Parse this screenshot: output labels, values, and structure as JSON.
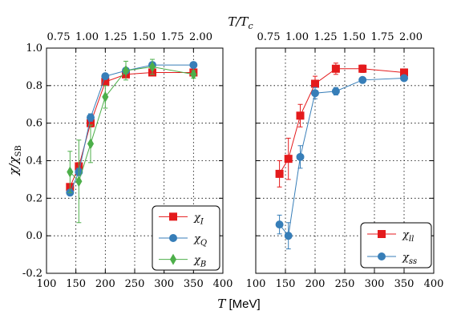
{
  "figure": {
    "top_axis_label": "T/T_c",
    "x_label": "T [MeV]",
    "y_label": "χ/χ_SB"
  },
  "chart_data": [
    {
      "type": "line",
      "panel": "left",
      "xlim": [
        100,
        400
      ],
      "ylim": [
        -0.2,
        1.0
      ],
      "x_ticks": [
        100,
        150,
        200,
        250,
        300,
        350,
        400
      ],
      "y_ticks": [
        -0.2,
        0.0,
        0.2,
        0.4,
        0.6,
        0.8,
        1.0
      ],
      "top_ticks": [
        "0.75",
        "1.00",
        "1.25",
        "1.50",
        "1.75",
        "2.00"
      ],
      "grid": true,
      "legend_placement": "bottom-right",
      "series": [
        {
          "name": "χ_I",
          "marker": "square",
          "color": "#e41a1c",
          "x": [
            140,
            155,
            175,
            200,
            235,
            280,
            350
          ],
          "y": [
            0.26,
            0.37,
            0.6,
            0.82,
            0.86,
            0.87,
            0.87
          ],
          "err": [
            0.01,
            0.02,
            0.02,
            0.01,
            0.01,
            0.01,
            0.01
          ]
        },
        {
          "name": "χ_Q",
          "marker": "circle",
          "color": "#377eb8",
          "x": [
            140,
            155,
            175,
            200,
            235,
            280,
            350
          ],
          "y": [
            0.23,
            0.34,
            0.63,
            0.85,
            0.88,
            0.91,
            0.91
          ],
          "err": [
            0.01,
            0.02,
            0.02,
            0.01,
            0.01,
            0.01,
            0.01
          ]
        },
        {
          "name": "χ_B",
          "marker": "diamond",
          "color": "#4daf4a",
          "x": [
            140,
            155,
            175,
            200,
            235,
            280,
            350
          ],
          "y": [
            0.34,
            0.29,
            0.49,
            0.74,
            0.88,
            0.9,
            0.86
          ],
          "err": [
            0.11,
            0.22,
            0.1,
            0.06,
            0.05,
            0.04,
            0.02
          ]
        }
      ]
    },
    {
      "type": "line",
      "panel": "right",
      "xlim": [
        100,
        400
      ],
      "ylim": [
        -0.2,
        1.0
      ],
      "x_ticks": [
        100,
        150,
        200,
        250,
        300,
        350,
        400
      ],
      "top_ticks": [
        "0.75",
        "1.00",
        "1.25",
        "1.50",
        "1.75",
        "2.00"
      ],
      "grid": true,
      "legend_placement": "bottom-right",
      "series": [
        {
          "name": "χ_ll",
          "marker": "square",
          "color": "#e41a1c",
          "x": [
            140,
            155,
            175,
            200,
            235,
            280,
            350
          ],
          "y": [
            0.33,
            0.41,
            0.64,
            0.81,
            0.89,
            0.89,
            0.87
          ],
          "err": [
            0.07,
            0.11,
            0.06,
            0.04,
            0.03,
            0.02,
            0.01
          ]
        },
        {
          "name": "χ_ss",
          "marker": "circle",
          "color": "#377eb8",
          "x": [
            140,
            155,
            175,
            200,
            235,
            280,
            350
          ],
          "y": [
            0.06,
            0.0,
            0.42,
            0.76,
            0.77,
            0.83,
            0.84
          ],
          "err": [
            0.05,
            0.07,
            0.06,
            0.03,
            0.02,
            0.01,
            0.01
          ]
        }
      ]
    }
  ]
}
